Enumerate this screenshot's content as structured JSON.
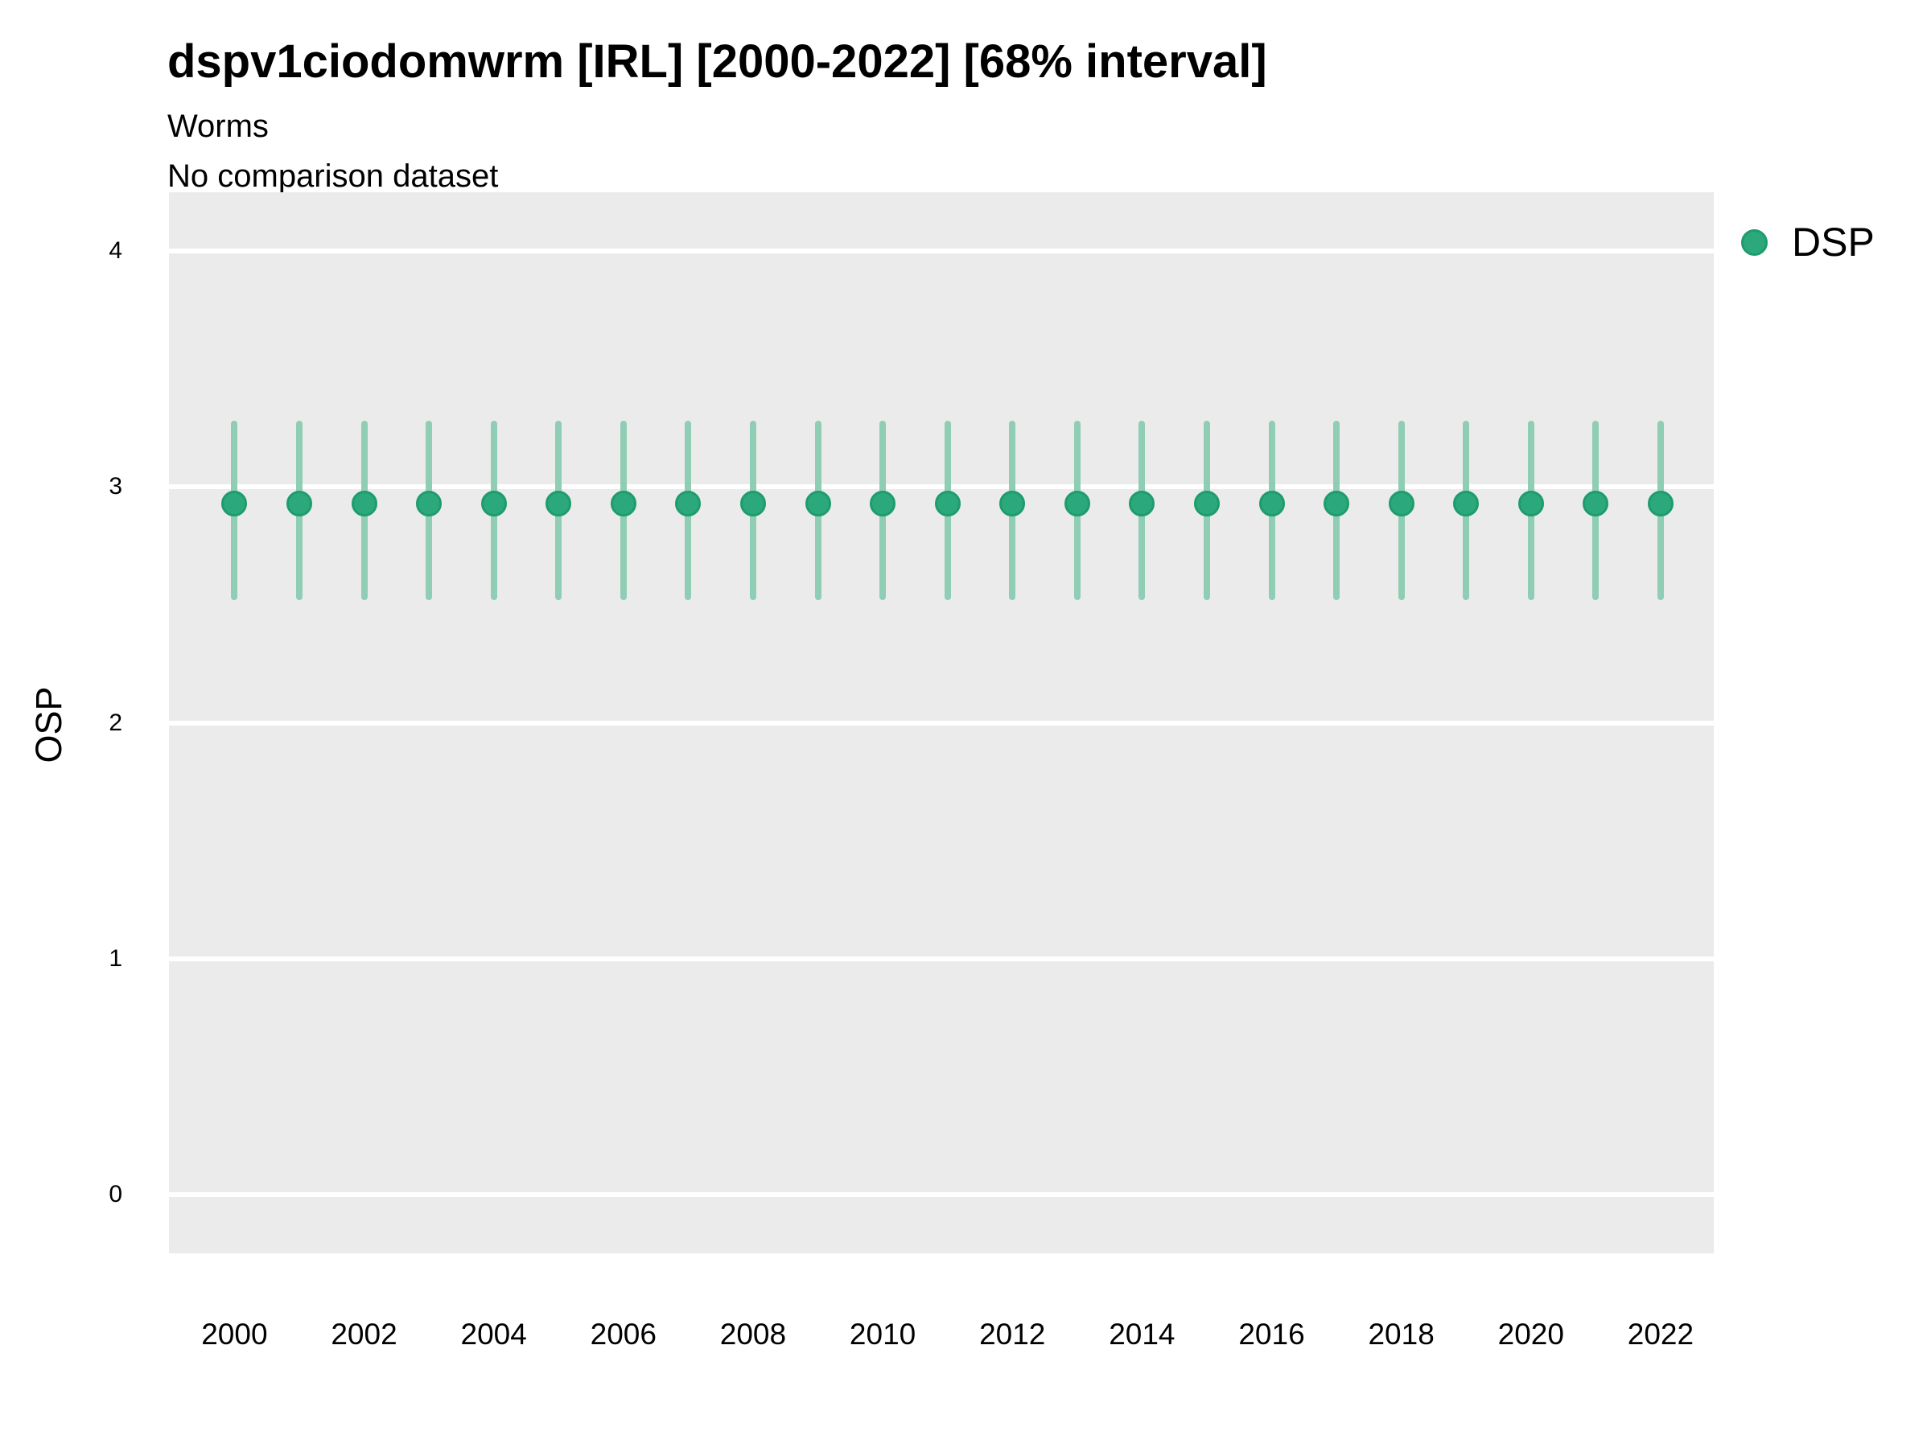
{
  "header": {
    "title": "dspv1ciodomwrm [IRL] [2000-2022] [68% interval]",
    "subtitle": "Worms",
    "note": "No comparison dataset"
  },
  "legend": {
    "label": "DSP",
    "position": "right-top",
    "marker": "circle-icon"
  },
  "axes": {
    "y_label": "OSP",
    "x_label": "",
    "y_ticks": [
      0,
      1,
      2,
      3,
      4
    ],
    "x_ticks": [
      2000,
      2002,
      2004,
      2006,
      2008,
      2010,
      2012,
      2014,
      2016,
      2018,
      2020,
      2022
    ],
    "ylim": [
      -0.25,
      4.25
    ],
    "xlim": [
      1998.99,
      2022.82
    ]
  },
  "colors": {
    "point_fill": "#2BA97C",
    "point_stroke": "#1F9C6D",
    "interval_line": "#8FCDB4",
    "panel_bg": "#EBEBEB",
    "gridline": "#FFFFFF",
    "text": "#000000"
  },
  "chart_data": {
    "type": "pointrange",
    "title": "dspv1ciodomwrm [IRL] [2000-2022] [68% interval]",
    "subtitle": "Worms",
    "note": "No comparison dataset",
    "xlabel": "",
    "ylabel": "OSP",
    "interval": "68%",
    "grid": "horizontal-major-only",
    "legend_position": "right-top",
    "ylim": [
      -0.25,
      4.25
    ],
    "series": [
      {
        "name": "DSP",
        "x": [
          2000,
          2001,
          2002,
          2003,
          2004,
          2005,
          2006,
          2007,
          2008,
          2009,
          2010,
          2011,
          2012,
          2013,
          2014,
          2015,
          2016,
          2017,
          2018,
          2019,
          2020,
          2021,
          2022
        ],
        "value": [
          2.93,
          2.93,
          2.93,
          2.93,
          2.93,
          2.93,
          2.93,
          2.93,
          2.93,
          2.93,
          2.93,
          2.93,
          2.93,
          2.93,
          2.93,
          2.93,
          2.93,
          2.93,
          2.93,
          2.93,
          2.93,
          2.93,
          2.93
        ],
        "low": [
          2.52,
          2.52,
          2.52,
          2.52,
          2.52,
          2.52,
          2.52,
          2.52,
          2.52,
          2.52,
          2.52,
          2.52,
          2.52,
          2.52,
          2.52,
          2.52,
          2.52,
          2.52,
          2.52,
          2.52,
          2.52,
          2.52,
          2.52
        ],
        "high": [
          3.28,
          3.28,
          3.28,
          3.28,
          3.28,
          3.28,
          3.28,
          3.28,
          3.28,
          3.28,
          3.28,
          3.28,
          3.28,
          3.28,
          3.28,
          3.28,
          3.28,
          3.28,
          3.28,
          3.28,
          3.28,
          3.28,
          3.28
        ]
      }
    ]
  }
}
